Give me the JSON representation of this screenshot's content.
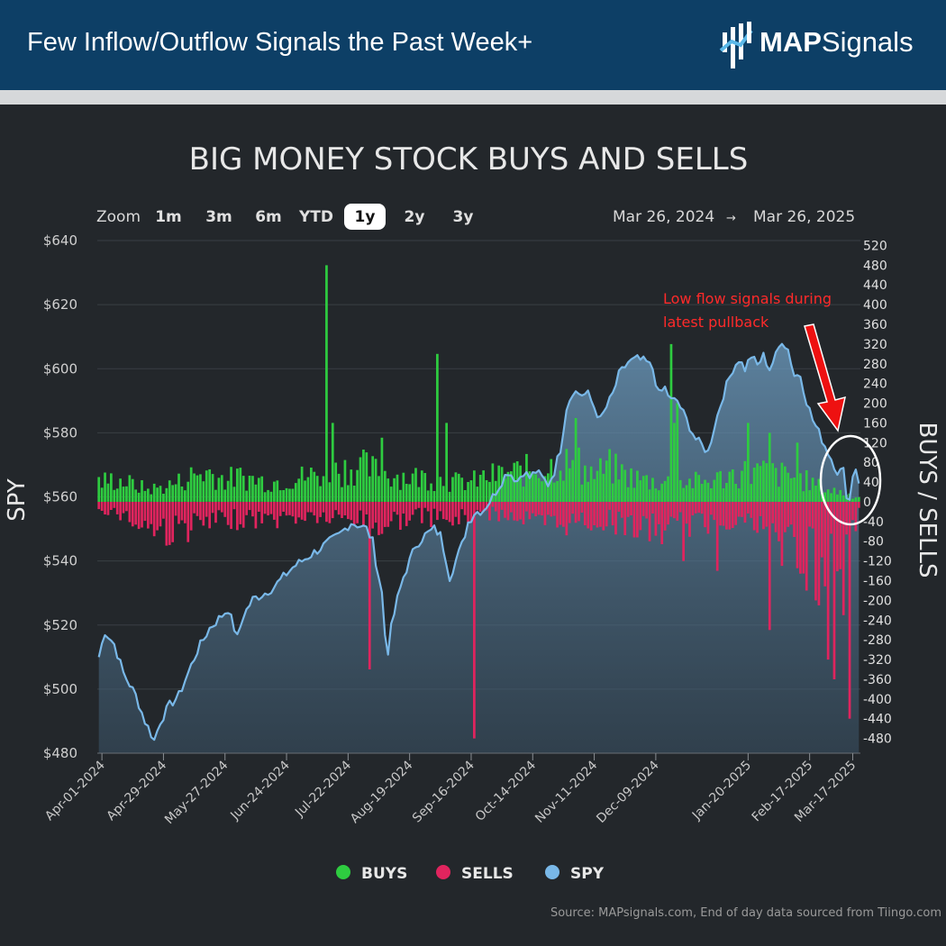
{
  "header": {
    "title": "Few Inflow/Outflow Signals the Past Week+",
    "brand_bold": "MAP",
    "brand_light": "Signals"
  },
  "zoom": {
    "label": "Zoom",
    "options": [
      "1m",
      "3m",
      "6m",
      "YTD",
      "1y",
      "2y",
      "3y"
    ],
    "selected": "1y"
  },
  "range": {
    "from": "Mar 26, 2024",
    "arrow": "→",
    "to": "Mar 26, 2025"
  },
  "annotation": {
    "line1": "Low flow signals during",
    "line2": "latest pullback"
  },
  "source": "Source: MAPsignals.com, End of day data sourced from Tiingo.com",
  "colors": {
    "buys": "#2ecc40",
    "sells": "#e0245e",
    "spy": "#79b8e8",
    "background": "#23272b",
    "header": "#0d3f66",
    "annotation": "#ff2020"
  },
  "chart_data": {
    "type": "bar+area",
    "title": "BIG MONEY STOCK BUYS AND SELLS",
    "left_axis": {
      "label": "SPY",
      "ticks": [
        "$480",
        "$500",
        "$520",
        "$540",
        "$560",
        "$580",
        "$600",
        "$620",
        "$640"
      ],
      "range": [
        480,
        640
      ]
    },
    "right_axis": {
      "label": "BUYS / SELLS",
      "ticks": [
        -480,
        -440,
        -400,
        -360,
        -320,
        -280,
        -240,
        -200,
        -160,
        -120,
        -80,
        -40,
        0,
        40,
        80,
        120,
        160,
        200,
        240,
        280,
        320,
        360,
        400,
        440,
        480,
        520
      ],
      "range": [
        -510,
        530
      ]
    },
    "x_ticks": [
      "Apr-01-2024",
      "Apr-29-2024",
      "May-27-2024",
      "Jun-24-2024",
      "Jul-22-2024",
      "Aug-19-2024",
      "Sep-16-2024",
      "Oct-14-2024",
      "Nov-11-2024",
      "Dec-09-2024",
      "Jan-20-2025",
      "Feb-17-2025",
      "Mar-17-2025"
    ],
    "legend": [
      {
        "name": "BUYS",
        "color": "#2ecc40"
      },
      {
        "name": "SELLS",
        "color": "#e0245e"
      },
      {
        "name": "SPY",
        "color": "#79b8e8"
      }
    ],
    "spy_anchors": [
      [
        0,
        510
      ],
      [
        2,
        518
      ],
      [
        5,
        514
      ],
      [
        8,
        505
      ],
      [
        12,
        498
      ],
      [
        15,
        490
      ],
      [
        18,
        484
      ],
      [
        20,
        490
      ],
      [
        23,
        495
      ],
      [
        26,
        498
      ],
      [
        29,
        505
      ],
      [
        32,
        512
      ],
      [
        36,
        519
      ],
      [
        39,
        522
      ],
      [
        42,
        525
      ],
      [
        45,
        516
      ],
      [
        47,
        523
      ],
      [
        50,
        528
      ],
      [
        54,
        530
      ],
      [
        57,
        532
      ],
      [
        60,
        535
      ],
      [
        63,
        538
      ],
      [
        66,
        540
      ],
      [
        69,
        542
      ],
      [
        72,
        544
      ],
      [
        75,
        546
      ],
      [
        78,
        548
      ],
      [
        80,
        550
      ],
      [
        82,
        552
      ],
      [
        85,
        551
      ],
      [
        87,
        550
      ],
      [
        89,
        546
      ],
      [
        90,
        540
      ],
      [
        92,
        530
      ],
      [
        93,
        517
      ],
      [
        94,
        512
      ],
      [
        95,
        519
      ],
      [
        97,
        528
      ],
      [
        99,
        535
      ],
      [
        101,
        540
      ],
      [
        103,
        545
      ],
      [
        106,
        548
      ],
      [
        109,
        550
      ],
      [
        111,
        548
      ],
      [
        113,
        540
      ],
      [
        114,
        535
      ],
      [
        116,
        540
      ],
      [
        118,
        545
      ],
      [
        120,
        552
      ],
      [
        122,
        555
      ],
      [
        125,
        556
      ],
      [
        128,
        560
      ],
      [
        131,
        565
      ],
      [
        133,
        568
      ],
      [
        136,
        565
      ],
      [
        138,
        568
      ],
      [
        140,
        566
      ],
      [
        142,
        568
      ],
      [
        144,
        566
      ],
      [
        146,
        564
      ],
      [
        148,
        568
      ],
      [
        150,
        575
      ],
      [
        152,
        588
      ],
      [
        154,
        593
      ],
      [
        157,
        592
      ],
      [
        159,
        592
      ],
      [
        161,
        588
      ],
      [
        163,
        584
      ],
      [
        165,
        588
      ],
      [
        167,
        592
      ],
      [
        169,
        598
      ],
      [
        172,
        602
      ],
      [
        175,
        603
      ],
      [
        178,
        602
      ],
      [
        180,
        600
      ],
      [
        182,
        592
      ],
      [
        184,
        594
      ],
      [
        186,
        590
      ],
      [
        188,
        590
      ],
      [
        190,
        586
      ],
      [
        192,
        582
      ],
      [
        194,
        578
      ],
      [
        196,
        576
      ],
      [
        198,
        574
      ],
      [
        200,
        582
      ],
      [
        203,
        592
      ],
      [
        206,
        600
      ],
      [
        208,
        603
      ],
      [
        210,
        600
      ],
      [
        212,
        604
      ],
      [
        214,
        601
      ],
      [
        216,
        604
      ],
      [
        218,
        600
      ],
      [
        220,
        604
      ],
      [
        222,
        609
      ],
      [
        224,
        606
      ],
      [
        226,
        598
      ],
      [
        228,
        598
      ],
      [
        230,
        590
      ],
      [
        232,
        584
      ],
      [
        234,
        580
      ],
      [
        236,
        576
      ],
      [
        238,
        572
      ],
      [
        240,
        568
      ],
      [
        242,
        568
      ],
      [
        243,
        561
      ],
      [
        244,
        559
      ],
      [
        245,
        567
      ],
      [
        246,
        569
      ],
      [
        247,
        565
      ]
    ],
    "flow_profile": [
      [
        0,
        40
      ],
      [
        6,
        45
      ],
      [
        11,
        35
      ],
      [
        16,
        25
      ],
      [
        21,
        30
      ],
      [
        26,
        40
      ],
      [
        31,
        55
      ],
      [
        36,
        60
      ],
      [
        41,
        45
      ],
      [
        46,
        50
      ],
      [
        51,
        45
      ],
      [
        56,
        40
      ],
      [
        61,
        45
      ],
      [
        66,
        50
      ],
      [
        71,
        55
      ],
      [
        76,
        60
      ],
      [
        81,
        70
      ],
      [
        86,
        70
      ],
      [
        91,
        60
      ],
      [
        96,
        55
      ],
      [
        101,
        50
      ],
      [
        106,
        50
      ],
      [
        111,
        45
      ],
      [
        116,
        40
      ],
      [
        121,
        40
      ],
      [
        126,
        50
      ],
      [
        131,
        55
      ],
      [
        136,
        60
      ],
      [
        141,
        65
      ],
      [
        146,
        70
      ],
      [
        151,
        80
      ],
      [
        156,
        70
      ],
      [
        161,
        55
      ],
      [
        166,
        70
      ],
      [
        171,
        55
      ],
      [
        176,
        45
      ],
      [
        181,
        40
      ],
      [
        186,
        40
      ],
      [
        191,
        40
      ],
      [
        196,
        40
      ],
      [
        201,
        45
      ],
      [
        206,
        55
      ],
      [
        211,
        60
      ],
      [
        216,
        60
      ],
      [
        221,
        55
      ],
      [
        226,
        50
      ],
      [
        231,
        40
      ],
      [
        236,
        25
      ],
      [
        241,
        20
      ],
      [
        247,
        10
      ]
    ],
    "sells_profile": [
      [
        0,
        -15
      ],
      [
        6,
        -20
      ],
      [
        11,
        -40
      ],
      [
        16,
        -50
      ],
      [
        21,
        -60
      ],
      [
        26,
        -55
      ],
      [
        31,
        -50
      ],
      [
        36,
        -45
      ],
      [
        41,
        -40
      ],
      [
        46,
        -35
      ],
      [
        51,
        -35
      ],
      [
        56,
        -35
      ],
      [
        61,
        -35
      ],
      [
        66,
        -30
      ],
      [
        71,
        -30
      ],
      [
        76,
        -35
      ],
      [
        81,
        -35
      ],
      [
        86,
        -35
      ],
      [
        91,
        -50
      ],
      [
        96,
        -40
      ],
      [
        101,
        -30
      ],
      [
        106,
        -30
      ],
      [
        111,
        -35
      ],
      [
        116,
        -40
      ],
      [
        121,
        -30
      ],
      [
        126,
        -25
      ],
      [
        131,
        -25
      ],
      [
        136,
        -30
      ],
      [
        141,
        -40
      ],
      [
        146,
        -50
      ],
      [
        151,
        -45
      ],
      [
        156,
        -40
      ],
      [
        161,
        -40
      ],
      [
        166,
        -40
      ],
      [
        171,
        -45
      ],
      [
        176,
        -55
      ],
      [
        181,
        -60
      ],
      [
        186,
        -55
      ],
      [
        191,
        -50
      ],
      [
        196,
        -45
      ],
      [
        201,
        -40
      ],
      [
        206,
        -35
      ],
      [
        211,
        -40
      ],
      [
        216,
        -55
      ],
      [
        221,
        -60
      ],
      [
        226,
        -80
      ],
      [
        231,
        -120
      ],
      [
        236,
        -150
      ],
      [
        241,
        -130
      ],
      [
        247,
        -20
      ]
    ],
    "notable_buys": [
      [
        74,
        480
      ],
      [
        110,
        300
      ],
      [
        113,
        160
      ],
      [
        155,
        170
      ],
      [
        156,
        110
      ],
      [
        186,
        320
      ],
      [
        187,
        160
      ],
      [
        188,
        200
      ],
      [
        211,
        160
      ],
      [
        218,
        140
      ],
      [
        227,
        120
      ],
      [
        92,
        130
      ],
      [
        76,
        160
      ]
    ],
    "notable_sells": [
      [
        88,
        -340
      ],
      [
        122,
        -480
      ],
      [
        190,
        -120
      ],
      [
        201,
        -140
      ],
      [
        230,
        -180
      ],
      [
        233,
        -200
      ],
      [
        237,
        -320
      ],
      [
        239,
        -360
      ],
      [
        242,
        -240
      ],
      [
        244,
        -440
      ],
      [
        222,
        -130
      ],
      [
        234,
        -210
      ],
      [
        242,
        -230
      ]
    ],
    "notable_sells_extra": [
      [
        218,
        -260
      ]
    ]
  }
}
